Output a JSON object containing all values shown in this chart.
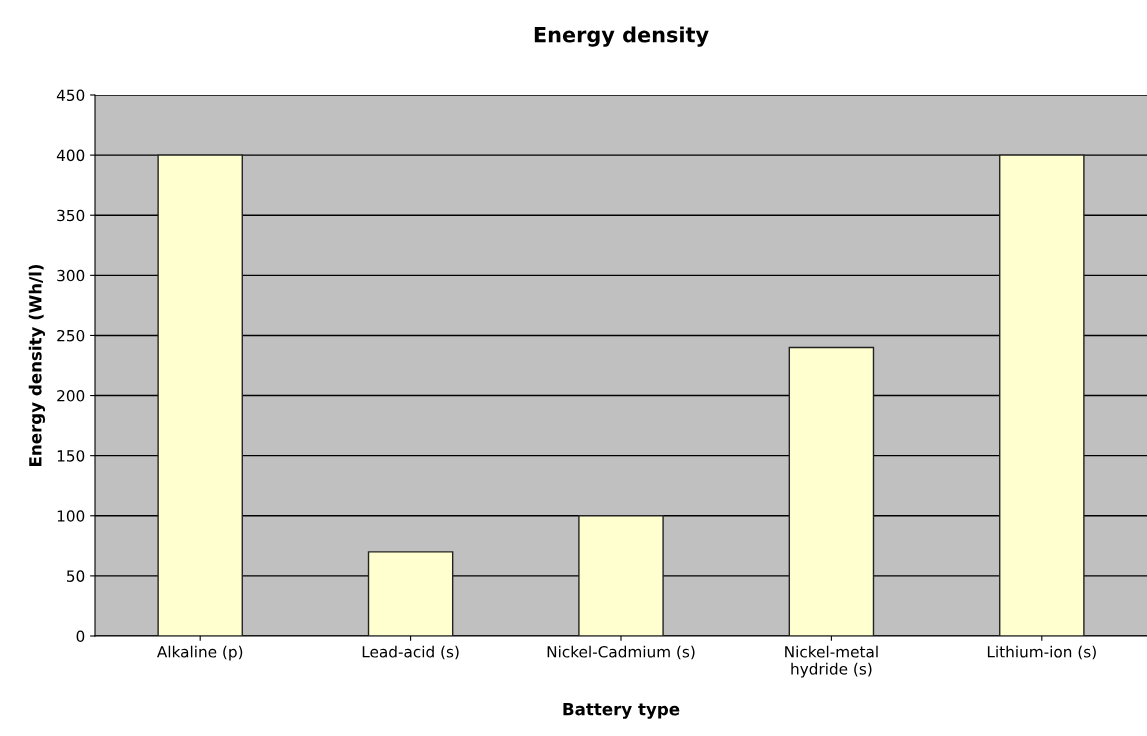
{
  "chart_data": {
    "type": "bar",
    "title": "Energy density",
    "xlabel": "Battery type",
    "ylabel": "Energy density (Wh/l)",
    "categories": [
      "Alkaline (p)",
      "Lead-acid (s)",
      "Nickel-Cadmium (s)",
      "Nickel-metal\nhydride (s)",
      "Lithium-ion (s)"
    ],
    "values": [
      400,
      70,
      100,
      240,
      400
    ],
    "color": "#ffffd0",
    "ylim": [
      0,
      450
    ],
    "yticks": [
      0,
      50,
      100,
      150,
      200,
      250,
      300,
      350,
      400,
      450
    ],
    "grid": "y"
  }
}
